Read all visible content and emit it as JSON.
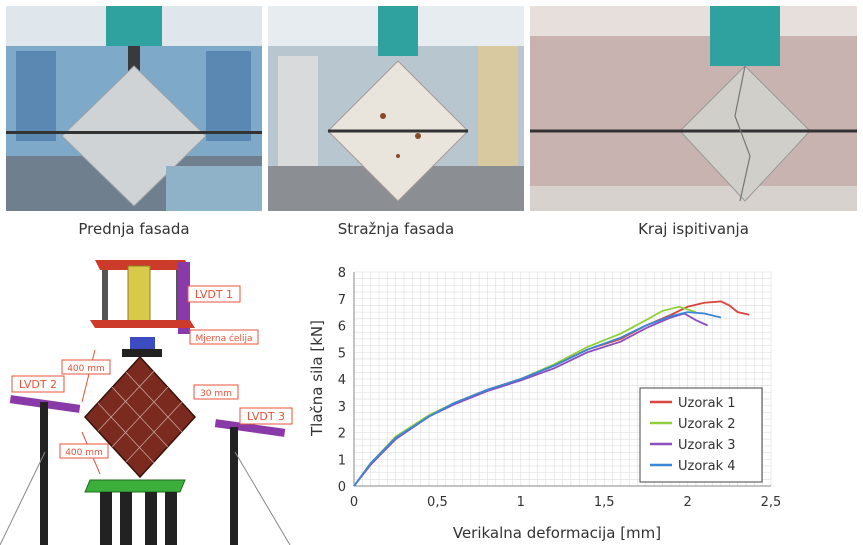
{
  "photos": [
    {
      "caption": "Prednja fasada"
    },
    {
      "caption": "Stražnja fasada"
    },
    {
      "caption": "Kraj ispitivanja"
    }
  ],
  "diagram": {
    "labels": {
      "lvdt1": "LVDT 1",
      "lvdt2": "LVDT 2",
      "lvdt3": "LVDT 3",
      "load_cell": "Mjerna ćelija",
      "dim_top": "400 mm",
      "dim_bottom": "400 mm",
      "thickness": "30 mm"
    }
  },
  "colors": {
    "uzorak1": "#d9453f",
    "uzorak2": "#8fcf3a",
    "uzorak3": "#8a4fc0",
    "uzorak4": "#3b86d6",
    "tag_border": "#e8533a",
    "wall": "#7a2a1f"
  },
  "chart_data": {
    "type": "line",
    "title": "",
    "xlabel": "Verikalna deformacija [mm]",
    "ylabel": "Tlačna sila [kN]",
    "xlim": [
      0,
      2.5
    ],
    "ylim": [
      0,
      8
    ],
    "xticks": [
      {
        "v": 0,
        "label": "0"
      },
      {
        "v": 0.5,
        "label": "0,5"
      },
      {
        "v": 1,
        "label": "1"
      },
      {
        "v": 1.5,
        "label": "1,5"
      },
      {
        "v": 2,
        "label": "2"
      },
      {
        "v": 2.5,
        "label": "2,5"
      }
    ],
    "yticks": [
      {
        "v": 0,
        "label": "0"
      },
      {
        "v": 1,
        "label": "1"
      },
      {
        "v": 2,
        "label": "2"
      },
      {
        "v": 3,
        "label": "3"
      },
      {
        "v": 4,
        "label": "4"
      },
      {
        "v": 5,
        "label": "5"
      },
      {
        "v": 6,
        "label": "6"
      },
      {
        "v": 7,
        "label": "7"
      },
      {
        "v": 8,
        "label": "8"
      }
    ],
    "grid": true,
    "legend_position": "bottom-right",
    "series": [
      {
        "name": "Uzorak 1",
        "color": "#d9453f",
        "points": [
          [
            0,
            0
          ],
          [
            0.1,
            0.8
          ],
          [
            0.25,
            1.8
          ],
          [
            0.45,
            2.6
          ],
          [
            0.6,
            3.1
          ],
          [
            0.8,
            3.6
          ],
          [
            1.0,
            4.0
          ],
          [
            1.2,
            4.5
          ],
          [
            1.4,
            5.1
          ],
          [
            1.6,
            5.5
          ],
          [
            1.75,
            6.0
          ],
          [
            1.9,
            6.4
          ],
          [
            2.0,
            6.7
          ],
          [
            2.1,
            6.85
          ],
          [
            2.2,
            6.9
          ],
          [
            2.25,
            6.75
          ],
          [
            2.3,
            6.5
          ],
          [
            2.37,
            6.4
          ]
        ]
      },
      {
        "name": "Uzorak 2",
        "color": "#8fcf3a",
        "points": [
          [
            0,
            0
          ],
          [
            0.1,
            0.85
          ],
          [
            0.25,
            1.85
          ],
          [
            0.45,
            2.65
          ],
          [
            0.6,
            3.1
          ],
          [
            0.8,
            3.6
          ],
          [
            1.0,
            4.0
          ],
          [
            1.2,
            4.55
          ],
          [
            1.4,
            5.2
          ],
          [
            1.6,
            5.7
          ],
          [
            1.75,
            6.2
          ],
          [
            1.85,
            6.55
          ],
          [
            1.95,
            6.7
          ],
          [
            2.0,
            6.6
          ],
          [
            2.05,
            6.5
          ]
        ]
      },
      {
        "name": "Uzorak 3",
        "color": "#8a4fc0",
        "points": [
          [
            0,
            0
          ],
          [
            0.1,
            0.8
          ],
          [
            0.25,
            1.75
          ],
          [
            0.45,
            2.6
          ],
          [
            0.6,
            3.05
          ],
          [
            0.8,
            3.55
          ],
          [
            1.0,
            3.95
          ],
          [
            1.2,
            4.4
          ],
          [
            1.4,
            5.0
          ],
          [
            1.6,
            5.4
          ],
          [
            1.75,
            5.9
          ],
          [
            1.9,
            6.3
          ],
          [
            1.98,
            6.45
          ],
          [
            2.05,
            6.2
          ],
          [
            2.12,
            6.0
          ]
        ]
      },
      {
        "name": "Uzorak 4",
        "color": "#3b86d6",
        "points": [
          [
            0,
            0
          ],
          [
            0.1,
            0.85
          ],
          [
            0.25,
            1.8
          ],
          [
            0.45,
            2.6
          ],
          [
            0.6,
            3.1
          ],
          [
            0.8,
            3.6
          ],
          [
            1.0,
            4.0
          ],
          [
            1.2,
            4.5
          ],
          [
            1.4,
            5.1
          ],
          [
            1.6,
            5.55
          ],
          [
            1.75,
            6.0
          ],
          [
            1.9,
            6.35
          ],
          [
            2.0,
            6.5
          ],
          [
            2.1,
            6.45
          ],
          [
            2.2,
            6.3
          ]
        ]
      }
    ]
  }
}
